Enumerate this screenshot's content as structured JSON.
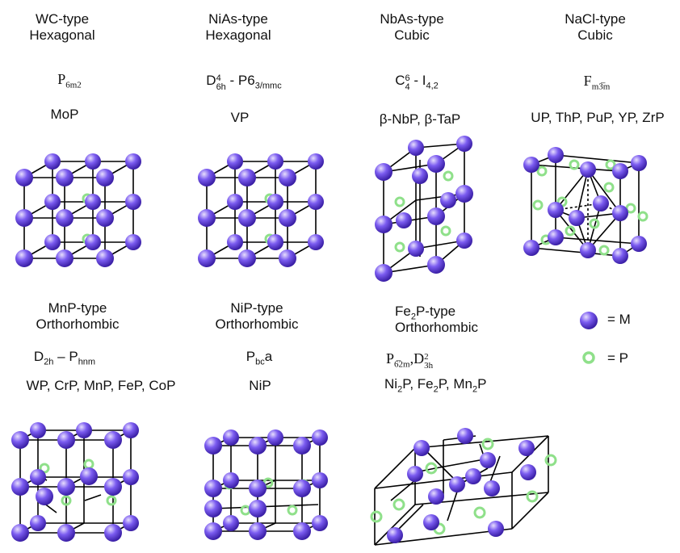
{
  "structures": [
    {
      "id": "wc",
      "name": "WC-type",
      "system": "Hexagonal",
      "group": {
        "base": "P",
        "sub": "6m2"
      },
      "compounds": "MoP"
    },
    {
      "id": "nias",
      "name": "NiAs-type",
      "system": "Hexagonal",
      "group": {
        "base": "D",
        "sub": "6h",
        "sup": "4",
        "dash": " - P6",
        "sub2": "3/mmc"
      },
      "compounds": "VP"
    },
    {
      "id": "nbas",
      "name": "NbAs-type",
      "system": "Cubic",
      "group": {
        "base": "C",
        "sub": "4",
        "sup": "6",
        "dash": " - I",
        "sub2": "4,2"
      },
      "compounds": "β-NbP, β-TaP"
    },
    {
      "id": "nacl",
      "name": "NaCl-type",
      "system": "Cubic",
      "group": {
        "base": "F",
        "sub": "m3̅m"
      },
      "compounds": "UP, ThP, PuP, YP, ZrP"
    },
    {
      "id": "mnp",
      "name": "MnP-type",
      "system": "Orthorhombic",
      "group": {
        "base": "D",
        "sub": "2h",
        "dash": " – P",
        "sub2": "hnm"
      },
      "compounds": "WP, CrP, MnP, FeP, CoP"
    },
    {
      "id": "nip",
      "name": "NiP-type",
      "system": "Orthorhombic",
      "group": {
        "base": "P",
        "sub": "bc",
        "tail": "a"
      },
      "compounds": "NiP"
    },
    {
      "id": "fe2p",
      "name": "Fe2P-type",
      "system": "Orthorhombic",
      "group": {
        "base": "P",
        "sub": "6̅2m",
        "sep": ",",
        "base2": "D",
        "sub2": "3h",
        "sup2": "2"
      },
      "compounds": "Ni2P, Fe2P, Mn2P"
    }
  ],
  "legend": {
    "metal": "= M",
    "phosphorus": "= P"
  },
  "colors": {
    "metal": "#7b5cf0",
    "metal_light": "#d9cfff",
    "metal_dark": "#3a1fa6",
    "phosphorus": "#8fe08a",
    "bond": "#000000",
    "text": "#111111"
  }
}
